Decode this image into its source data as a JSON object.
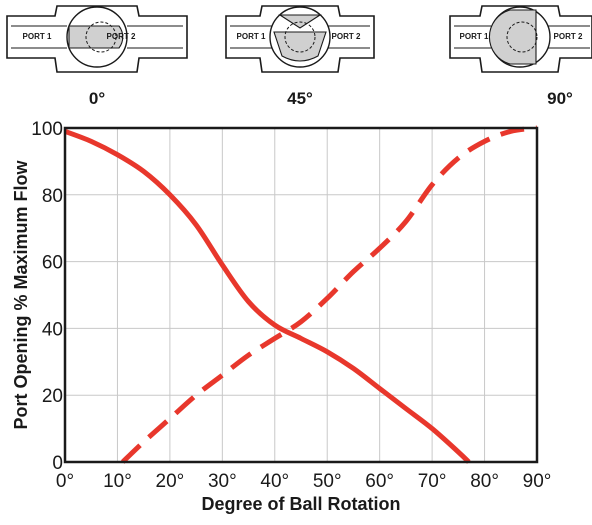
{
  "valves": [
    {
      "angle_label": "0°",
      "port1_label": "PORT 1",
      "port2_label": "PORT 2"
    },
    {
      "angle_label": "45°",
      "port1_label": "PORT 1",
      "port2_label": "PORT 2"
    },
    {
      "angle_label": "90°",
      "port1_label": "PORT 1",
      "port2_label": "PORT 2"
    }
  ],
  "colors": {
    "curve": "#e8372c",
    "grid": "#c8c8c8",
    "frame": "#1a1a1a",
    "valve_fill": "#d0d0d0"
  },
  "chart_data": {
    "type": "line",
    "title": "",
    "xlabel": "Degree of Ball Rotation",
    "ylabel": "Port Opening % Maximum Flow",
    "xlim": [
      0,
      90
    ],
    "ylim": [
      0,
      100
    ],
    "x_ticks": [
      0,
      10,
      20,
      30,
      40,
      50,
      60,
      70,
      80,
      90
    ],
    "x_tick_labels": [
      "0°",
      "10°",
      "20°",
      "30°",
      "40°",
      "50°",
      "60°",
      "70°",
      "80°",
      "90°"
    ],
    "y_ticks": [
      0,
      20,
      40,
      60,
      80,
      100
    ],
    "y_tick_labels": [
      "0",
      "20",
      "40",
      "60",
      "80",
      "100"
    ],
    "grid": true,
    "legend": "none",
    "series": [
      {
        "style": "solid",
        "x": [
          0,
          5,
          10,
          15,
          20,
          25,
          30,
          35,
          40,
          45,
          50,
          55,
          60,
          65,
          70,
          75,
          77
        ],
        "y": [
          99,
          96,
          92,
          87,
          80,
          71,
          59,
          48,
          41,
          37,
          33,
          28,
          22,
          16,
          10,
          3,
          0
        ]
      },
      {
        "style": "dashed",
        "x": [
          11,
          15,
          20,
          25,
          30,
          35,
          40,
          45,
          50,
          55,
          60,
          65,
          70,
          75,
          80,
          85,
          90
        ],
        "y": [
          0,
          6,
          13,
          20,
          26,
          32,
          37,
          42,
          49,
          57,
          64,
          72,
          83,
          91,
          96,
          99,
          100
        ]
      }
    ]
  }
}
